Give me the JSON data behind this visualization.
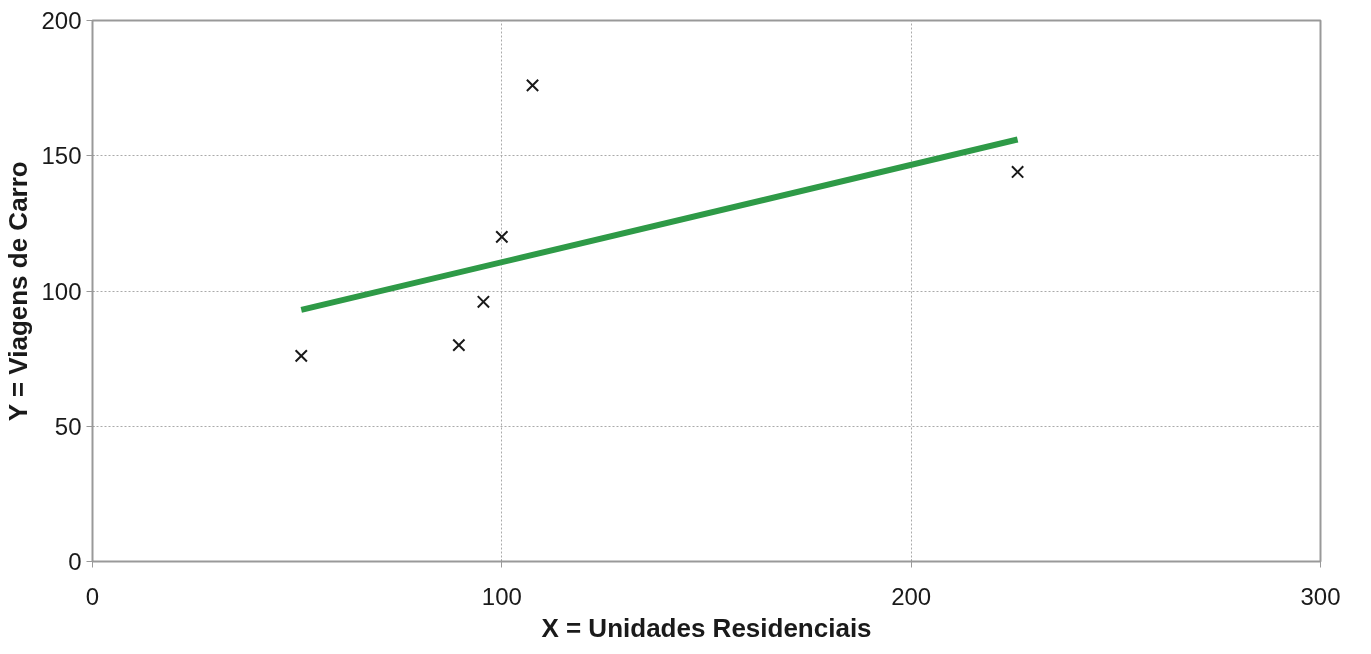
{
  "chart_data": {
    "type": "scatter",
    "xlabel": "X = Unidades Residenciais",
    "ylabel": "Y = Viagens de Carro",
    "xlim": [
      0,
      300
    ],
    "ylim": [
      0,
      200
    ],
    "xticks": [
      0,
      100,
      200,
      300
    ],
    "yticks": [
      0,
      50,
      100,
      150,
      200
    ],
    "grid": true,
    "series": [
      {
        "marker": "cross",
        "color": "#1a1a1a",
        "x": [
          51,
          89.5,
          95.5,
          100,
          107.5,
          226
        ],
        "values": [
          76,
          80,
          96,
          120,
          176,
          144
        ]
      },
      {
        "type": "line",
        "marker": "none",
        "color": "#2e9a47",
        "x": [
          51,
          226
        ],
        "values": [
          93,
          156
        ]
      }
    ]
  }
}
